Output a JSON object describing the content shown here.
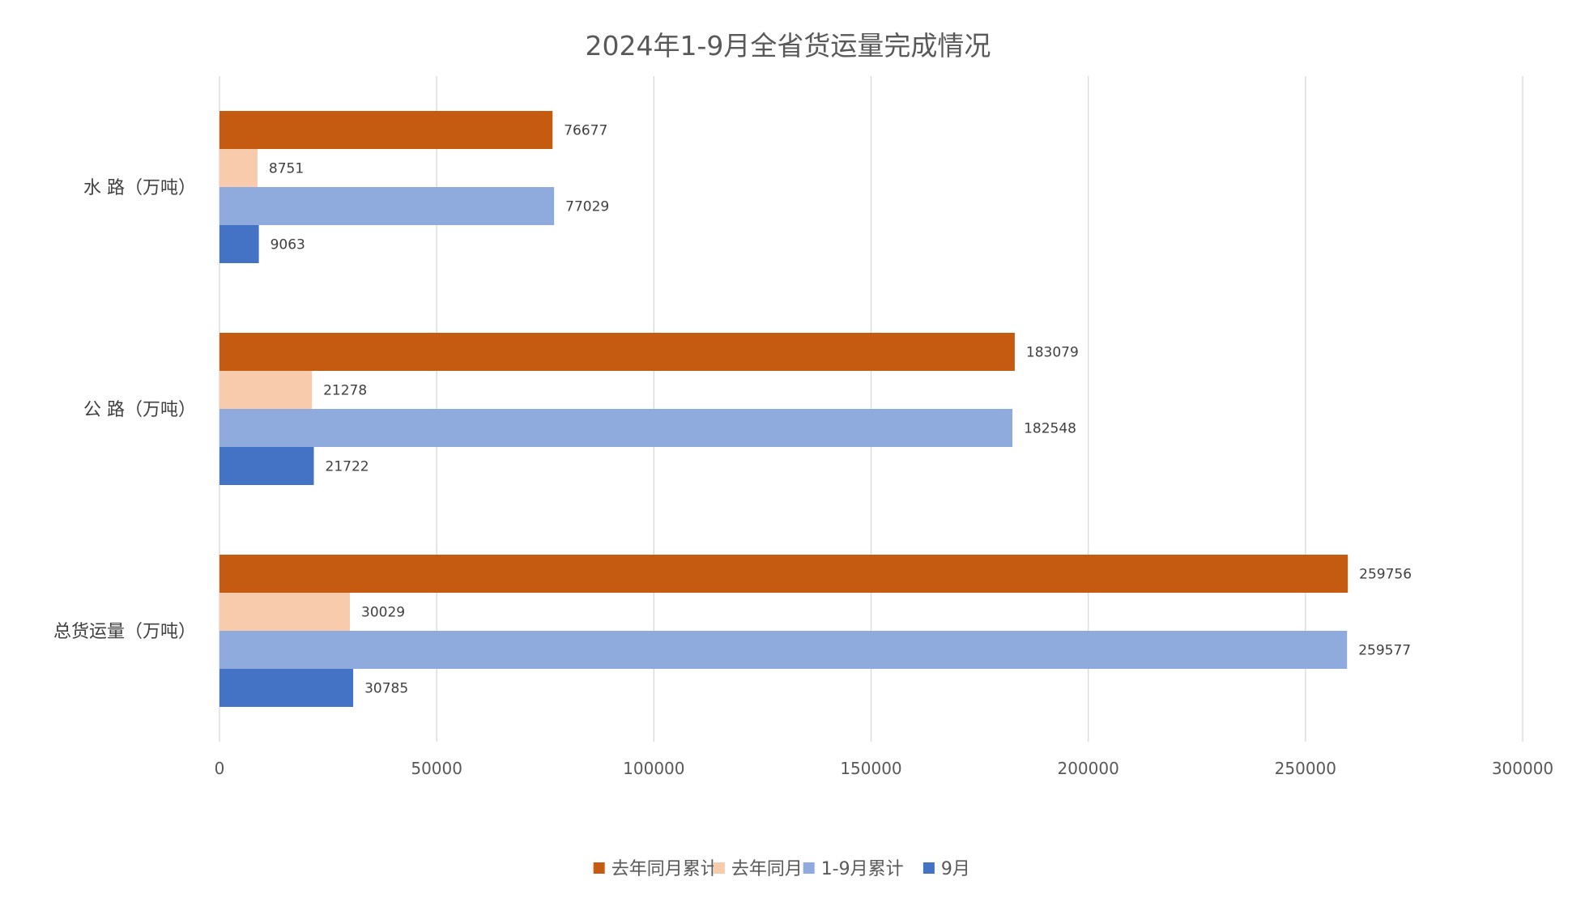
{
  "chart_data": {
    "type": "bar",
    "orientation": "horizontal",
    "title": "2024年1-9月全省货运量完成情况",
    "categories": [
      "水 路（万吨）",
      "公 路（万吨）",
      "总货运量（万吨）"
    ],
    "series": [
      {
        "name": "去年同月累计",
        "color": "#C55A11",
        "values": [
          76677,
          183079,
          259756
        ]
      },
      {
        "name": "去年同月",
        "color": "#F8CBAD",
        "values": [
          8751,
          21278,
          30029
        ]
      },
      {
        "name": "1-9月累计",
        "color": "#8FAADC",
        "values": [
          77029,
          182548,
          259577
        ]
      },
      {
        "name": "9月",
        "color": "#4472C4",
        "values": [
          9063,
          21722,
          30785
        ]
      }
    ],
    "xlim": [
      0,
      300000
    ],
    "xticks": [
      0,
      50000,
      100000,
      150000,
      200000,
      250000,
      300000
    ],
    "xlabel": "",
    "ylabel": "",
    "grid": true,
    "legend_position": "bottom",
    "data_labels": true
  }
}
